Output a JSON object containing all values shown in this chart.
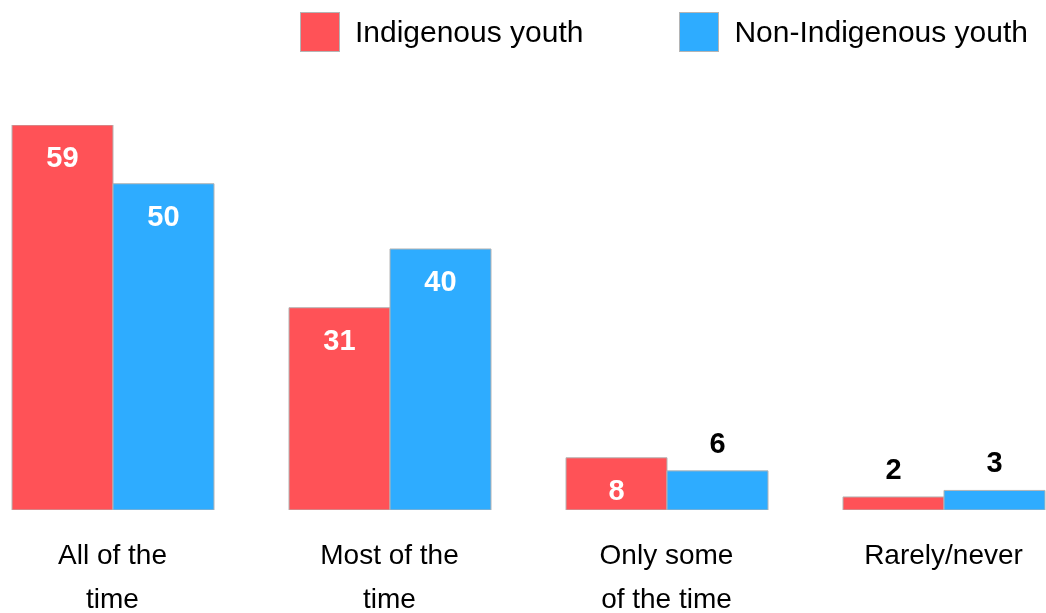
{
  "chart_data": {
    "type": "bar",
    "categories": [
      "All of the time",
      "Most of the time",
      "Only some of the time",
      "Rarely/never"
    ],
    "series": [
      {
        "name": "Indigenous youth",
        "color": "#ff5257",
        "values": [
          59,
          31,
          8,
          2
        ]
      },
      {
        "name": "Non-Indigenous youth",
        "color": "#2eacff",
        "values": [
          50,
          40,
          6,
          3
        ]
      }
    ],
    "data_labels": true,
    "legend": "top right",
    "tick_labels": "x"
  }
}
